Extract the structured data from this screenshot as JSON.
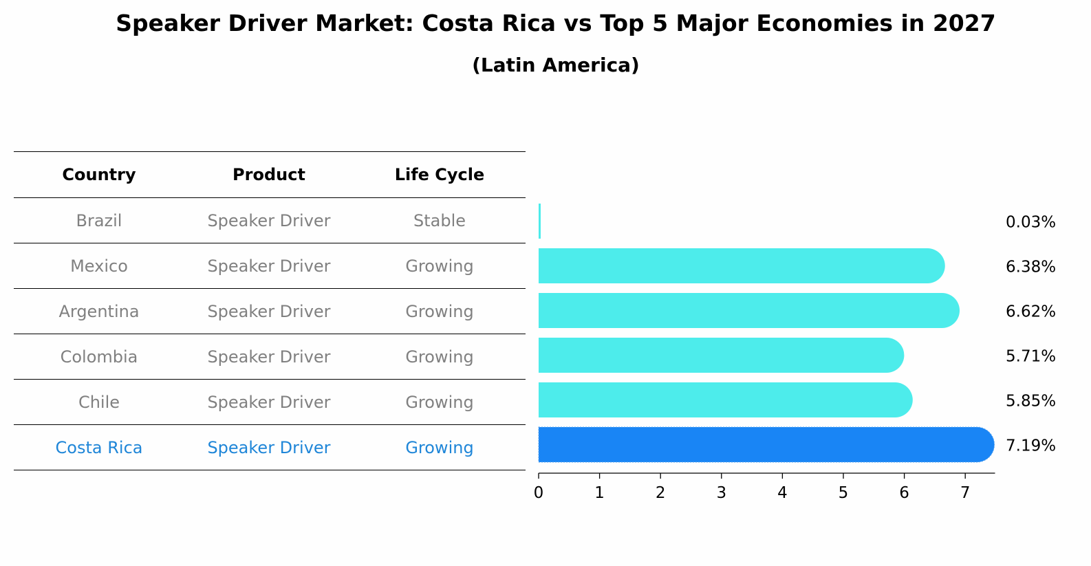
{
  "title": "Speaker Driver Market: Costa Rica vs Top 5 Major Economies in 2027",
  "subtitle": "(Latin America)",
  "table": {
    "headers": [
      "Country",
      "Product",
      "Life Cycle"
    ],
    "rows": [
      {
        "country": "Brazil",
        "product": "Speaker Driver",
        "life_cycle": "Stable"
      },
      {
        "country": "Mexico",
        "product": "Speaker Driver",
        "life_cycle": "Growing"
      },
      {
        "country": "Argentina",
        "product": "Speaker Driver",
        "life_cycle": "Growing"
      },
      {
        "country": "Colombia",
        "product": "Speaker Driver",
        "life_cycle": "Growing"
      },
      {
        "country": "Chile",
        "product": "Speaker Driver",
        "life_cycle": "Growing"
      },
      {
        "country": "Costa Rica",
        "product": "Speaker Driver",
        "life_cycle": "Growing"
      }
    ]
  },
  "colors": {
    "bar": "#4deceb",
    "highlight_bar": "#1985f5",
    "highlight_text": "#1f86d8",
    "muted_text": "#808080"
  },
  "chart_data": {
    "type": "bar",
    "orientation": "horizontal",
    "categories": [
      "Brazil",
      "Mexico",
      "Argentina",
      "Colombia",
      "Chile",
      "Costa Rica"
    ],
    "values": [
      0.03,
      6.38,
      6.62,
      5.71,
      5.85,
      7.19
    ],
    "value_labels": [
      "0.03%",
      "6.38%",
      "6.62%",
      "5.71%",
      "5.85%",
      "7.19%"
    ],
    "highlight": "Costa Rica",
    "xlim": [
      0,
      7.5
    ],
    "xticks": [
      0,
      1,
      2,
      3,
      4,
      5,
      6,
      7
    ],
    "xlabel": "",
    "ylabel": ""
  }
}
